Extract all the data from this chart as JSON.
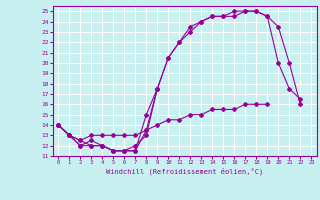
{
  "title": "",
  "xlabel": "Windchill (Refroidissement éolien,°C)",
  "ylabel": "",
  "xlim": [
    -0.5,
    23.5
  ],
  "ylim": [
    11,
    25.5
  ],
  "xticks": [
    0,
    1,
    2,
    3,
    4,
    5,
    6,
    7,
    8,
    9,
    10,
    11,
    12,
    13,
    14,
    15,
    16,
    17,
    18,
    19,
    20,
    21,
    22,
    23
  ],
  "yticks": [
    11,
    12,
    13,
    14,
    15,
    16,
    17,
    18,
    19,
    20,
    21,
    22,
    23,
    24,
    25
  ],
  "bg_color": "#c8f0f0",
  "grid_color": "#ffffff",
  "line_color": "#990099",
  "spine_color": "#990099",
  "lines": [
    {
      "x": [
        0,
        1,
        2,
        3,
        4,
        5,
        6,
        7,
        8,
        9,
        10,
        11,
        12,
        13,
        14,
        15,
        16,
        17,
        18,
        19,
        20,
        21,
        22
      ],
      "y": [
        14,
        13,
        12,
        12,
        12,
        11.5,
        11.5,
        11.5,
        15,
        17.5,
        20.5,
        22,
        23.5,
        24,
        24.5,
        24.5,
        25,
        25,
        25,
        24.5,
        20,
        17.5,
        16.5
      ]
    },
    {
      "x": [
        0,
        1,
        2,
        3,
        4,
        5,
        6,
        7,
        8,
        9,
        10,
        11,
        12,
        13,
        14,
        15,
        16,
        17,
        18,
        19,
        20,
        21,
        22
      ],
      "y": [
        14,
        13,
        12,
        12.5,
        12,
        11.5,
        11.5,
        12,
        13,
        17.5,
        20.5,
        22,
        23,
        24,
        24.5,
        24.5,
        24.5,
        25,
        25,
        24.5,
        23.5,
        20,
        16
      ]
    },
    {
      "x": [
        0,
        1,
        2,
        3,
        4,
        5,
        6,
        7,
        8,
        9
      ],
      "y": [
        14,
        13,
        12.5,
        12,
        12,
        11.5,
        11.5,
        11.5,
        13.5,
        17.5
      ]
    },
    {
      "x": [
        0,
        1,
        2,
        3,
        4,
        5,
        6,
        7,
        8,
        9,
        10,
        11,
        12,
        13,
        14,
        15,
        16,
        17,
        18,
        19
      ],
      "y": [
        14,
        13,
        12.5,
        13,
        13,
        13,
        13,
        13,
        13.5,
        14,
        14.5,
        14.5,
        15,
        15,
        15.5,
        15.5,
        15.5,
        16,
        16,
        16
      ]
    }
  ]
}
